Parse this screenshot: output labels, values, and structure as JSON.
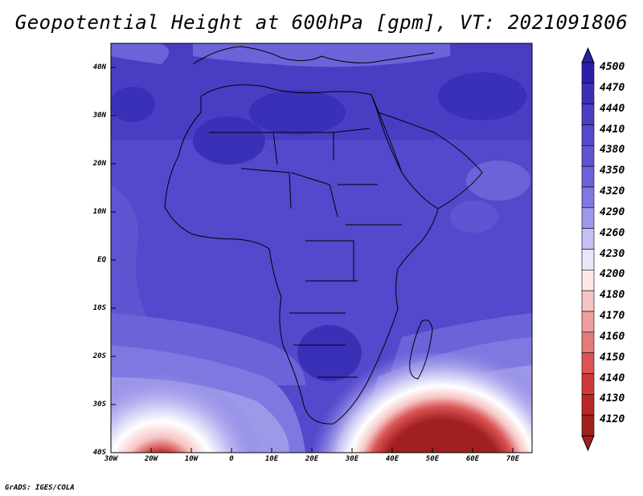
{
  "title": "Geopotential Height at 600hPa [gpm], VT: 2021091806",
  "footer": "GrADS: IGES/COLA",
  "map": {
    "lon_range": [
      -30,
      75
    ],
    "lat_range": [
      -40,
      45
    ],
    "lon_ticks": [
      "30W",
      "20W",
      "10W",
      "0",
      "10E",
      "20E",
      "30E",
      "40E",
      "50E",
      "60E",
      "70E"
    ],
    "lat_ticks": [
      "40S",
      "30S",
      "20S",
      "10S",
      "EQ",
      "10N",
      "20N",
      "30N",
      "40N"
    ]
  },
  "colorbar": {
    "levels": [
      "4500",
      "4470",
      "4440",
      "4410",
      "4380",
      "4350",
      "4320",
      "4290",
      "4260",
      "4230",
      "4200",
      "4180",
      "4170",
      "4160",
      "4150",
      "4140",
      "4130",
      "4120"
    ],
    "colors": [
      "#2b1fa8",
      "#3a30b8",
      "#4a3dc4",
      "#5548cc",
      "#5f55d2",
      "#6c63d9",
      "#8078e0",
      "#9e98e9",
      "#c4c0f3",
      "#e8e6fb",
      "#fce8e8",
      "#f6c4c4",
      "#ee9e9e",
      "#e57a7a",
      "#db5555",
      "#cd3a3a",
      "#b82626",
      "#a11f1f"
    ]
  }
}
